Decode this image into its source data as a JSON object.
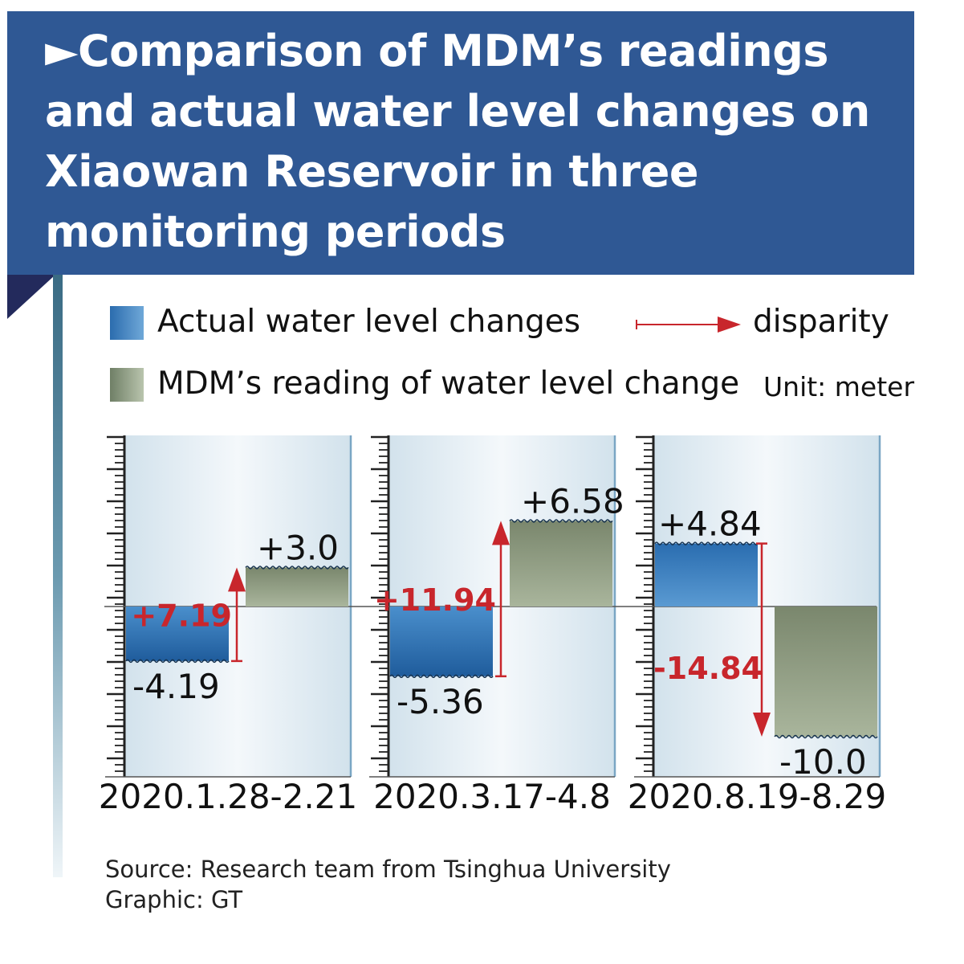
{
  "title": "►Comparison of MDM’s readings and actual water level changes on Xiaowan Reservoir in three monitoring periods",
  "legend": {
    "actual": "Actual water level changes",
    "mdm": "MDM’s reading of water level change",
    "disparity": "disparity"
  },
  "unit": "Unit: meter",
  "colors": {
    "title_bg": "#2f5894",
    "actual_bar": "#3478b8",
    "mdm_bar": "#8d9a80",
    "disparity_arrow": "#c8262c"
  },
  "chart_data": {
    "type": "bar",
    "categories": [
      "2020.1.28-2.21",
      "2020.3.17-4.8",
      "2020.8.19-8.29"
    ],
    "series": [
      {
        "name": "Actual water level changes",
        "values": [
          -4.19,
          -5.36,
          4.84
        ],
        "labels": [
          "-4.19",
          "-5.36",
          "+4.84"
        ]
      },
      {
        "name": "MDM’s reading of water level change",
        "values": [
          3.0,
          6.58,
          -10.0
        ],
        "labels": [
          "+3.0",
          "+6.58",
          "-10.0"
        ]
      }
    ],
    "disparity": {
      "values": [
        7.19,
        11.94,
        -14.84
      ],
      "labels": [
        "+7.19",
        "+11.94",
        "-14.84"
      ]
    },
    "ylim": [
      -13,
      13
    ],
    "unit": "meter"
  },
  "footer": {
    "source": "Source: Research team from Tsinghua University",
    "graphic": "Graphic: GT"
  }
}
